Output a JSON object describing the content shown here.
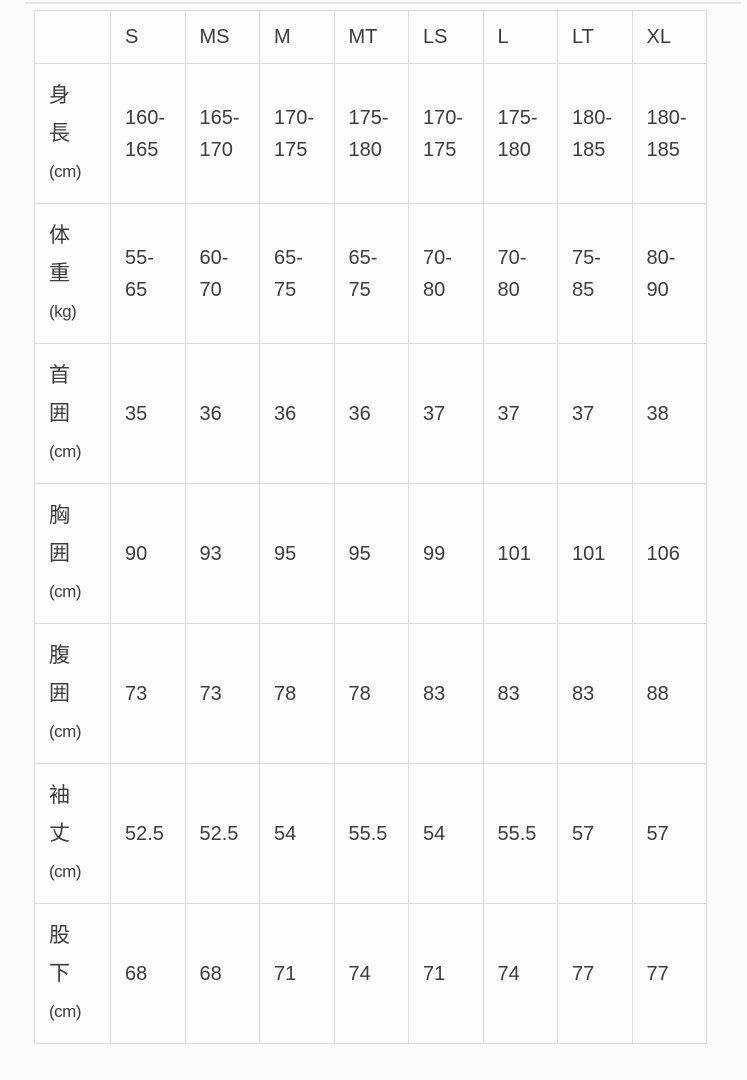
{
  "table": {
    "corner_label": "",
    "sizes": [
      "S",
      "MS",
      "M",
      "MT",
      "LS",
      "L",
      "LT",
      "XL"
    ],
    "rows": [
      {
        "label": "身長",
        "unit": "(cm)",
        "values": [
          "160-165",
          "165-170",
          "170-175",
          "175-180",
          "170-175",
          "175-180",
          "180-185",
          "180-185"
        ]
      },
      {
        "label": "体重",
        "unit": "(kg)",
        "values": [
          "55-65",
          "60-70",
          "65-75",
          "65-75",
          "70-80",
          "70-80",
          "75-85",
          "80-90"
        ]
      },
      {
        "label": "首囲",
        "unit": "(cm)",
        "values": [
          "35",
          "36",
          "36",
          "36",
          "37",
          "37",
          "37",
          "38"
        ]
      },
      {
        "label": "胸囲",
        "unit": "(cm)",
        "values": [
          "90",
          "93",
          "95",
          "95",
          "99",
          "101",
          "101",
          "106"
        ]
      },
      {
        "label": "腹囲",
        "unit": "(cm)",
        "values": [
          "73",
          "73",
          "78",
          "78",
          "83",
          "83",
          "83",
          "88"
        ]
      },
      {
        "label": "袖丈",
        "unit": "(cm)",
        "values": [
          "52.5",
          "52.5",
          "54",
          "55.5",
          "54",
          "55.5",
          "57",
          "57"
        ]
      },
      {
        "label": "股下",
        "unit": "(cm)",
        "values": [
          "68",
          "68",
          "71",
          "74",
          "71",
          "74",
          "77",
          "77"
        ]
      }
    ]
  },
  "colors": {
    "background": "#fbfbfb",
    "cell_background": "#fdfdfd",
    "border": "#dcdcdc",
    "text": "#3d3d3d",
    "top_line": "#e5e5e5"
  }
}
